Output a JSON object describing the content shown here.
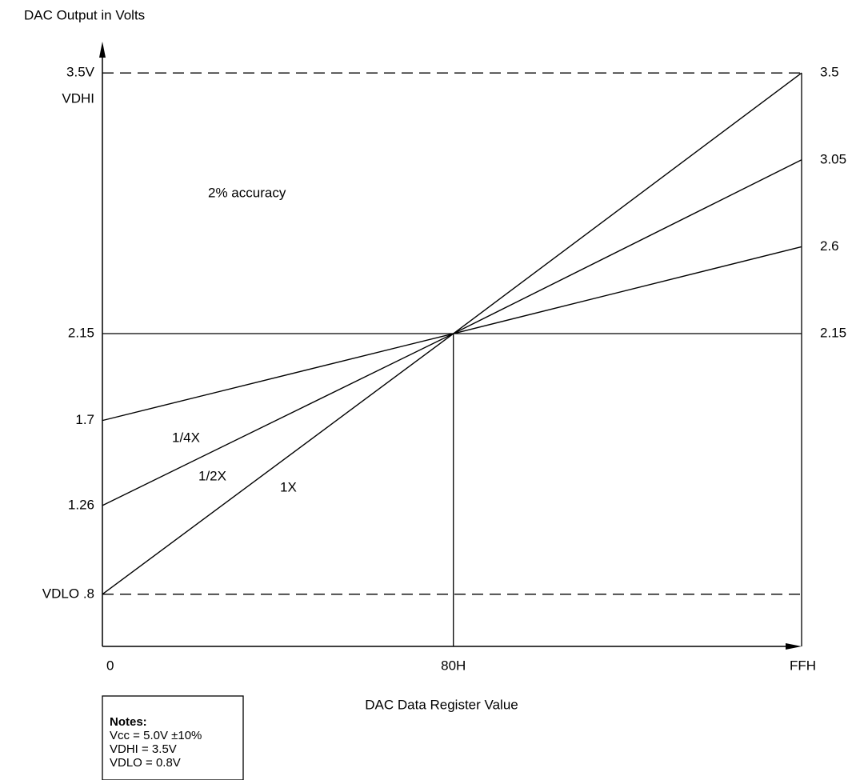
{
  "chart_data": {
    "type": "line",
    "y_axis_label": "DAC Output in Volts",
    "x_axis_label": "DAC Data Register Value",
    "x": [
      0,
      128,
      255
    ],
    "series": [
      {
        "name": "1X",
        "color": "#000000",
        "values": [
          0.8,
          2.15,
          3.5
        ]
      },
      {
        "name": "1/2X",
        "color": "#000000",
        "values": [
          1.26,
          2.15,
          3.05
        ]
      },
      {
        "name": "1/4X",
        "color": "#000000",
        "values": [
          1.7,
          2.15,
          2.6
        ]
      }
    ],
    "xlim": [
      0,
      255
    ],
    "xticks": [
      0,
      {
        "value": 128,
        "label": "80H"
      },
      {
        "value": 255,
        "label": "FFH"
      }
    ],
    "ylim": [
      0.53,
      3.65
    ],
    "yticks": [
      {
        "value": 3.5,
        "label": "3.5V"
      },
      2.15,
      1.7,
      1.26,
      {
        "value": 0.8,
        "label": "VDLO .8"
      }
    ],
    "y2lim": [
      0.53,
      3.65
    ],
    "y2ticks": [
      3.5,
      3.05,
      2.6,
      2.15
    ],
    "annotations": [
      "VDHI",
      "2% accuracy"
    ],
    "notes": {
      "title": "Notes:",
      "lines": [
        "Vcc = 5.0V ±10%",
        "VDHI = 3.5V",
        "VDLO = 0.8V"
      ]
    }
  }
}
